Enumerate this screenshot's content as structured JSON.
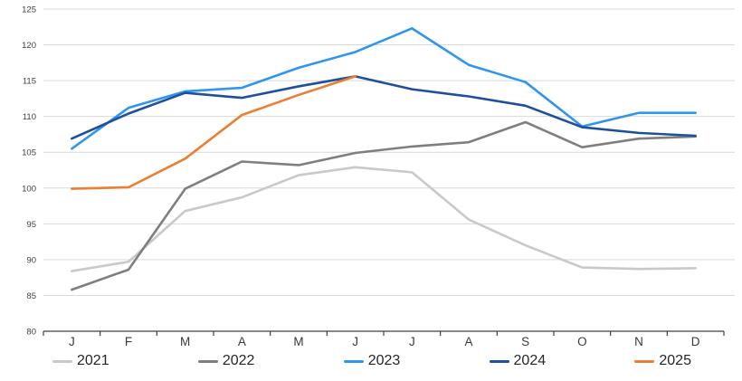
{
  "chart_data": {
    "type": "line",
    "title": "",
    "categories": [
      "J",
      "F",
      "M",
      "A",
      "M",
      "J",
      "J",
      "A",
      "S",
      "O",
      "N",
      "D"
    ],
    "series": [
      {
        "name": "2021",
        "color": "#c9c9c9",
        "values": [
          88.4,
          89.7,
          96.8,
          98.7,
          101.8,
          102.9,
          102.2,
          95.6,
          92.0,
          88.9,
          88.7,
          88.8
        ]
      },
      {
        "name": "2022",
        "color": "#7f7f7f",
        "values": [
          85.8,
          88.6,
          99.9,
          103.7,
          103.2,
          104.9,
          105.8,
          106.4,
          109.2,
          105.7,
          106.9,
          107.2
        ]
      },
      {
        "name": "2023",
        "color": "#2e96f0",
        "values": [
          105.5,
          111.2,
          113.5,
          114.0,
          116.8,
          119.0,
          122.3,
          117.2,
          114.8,
          108.6,
          110.5,
          110.5
        ]
      },
      {
        "name": "2024",
        "color": "#1f509c",
        "values": [
          106.9,
          110.4,
          113.3,
          112.6,
          114.2,
          115.6,
          113.8,
          112.8,
          111.5,
          108.5,
          107.7,
          107.3
        ]
      },
      {
        "name": "2025",
        "color": "#ed7d31",
        "values": [
          99.9,
          100.1,
          104.1,
          110.2,
          113.0,
          115.6
        ]
      }
    ],
    "ylim": [
      80,
      125
    ],
    "ytick_step": 5,
    "grid": true,
    "legend_position": "bottom",
    "axis_colors": {
      "gridline": "#d9d9d9",
      "axis_line": "#404040",
      "tick_label": "#404040"
    }
  }
}
